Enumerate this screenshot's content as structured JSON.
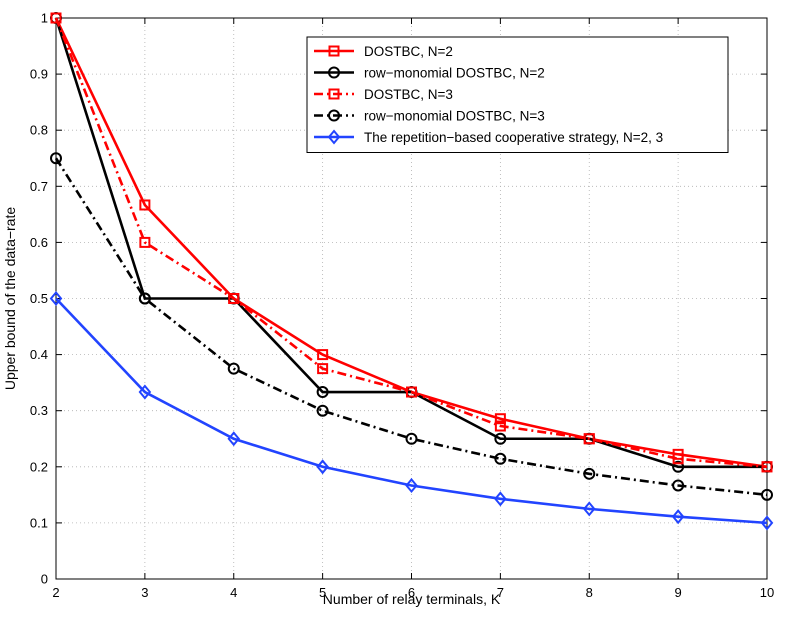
{
  "chart_data": {
    "type": "line",
    "title": "",
    "xlabel": "Number of relay terminals, K",
    "ylabel": "Upper bound of the data−rate",
    "xlim": [
      2,
      10
    ],
    "ylim": [
      0,
      1
    ],
    "xticks": [
      2,
      3,
      4,
      5,
      6,
      7,
      8,
      9,
      10
    ],
    "yticks": [
      0,
      0.1,
      0.2,
      0.3,
      0.4,
      0.5,
      0.6,
      0.7,
      0.8,
      0.9,
      1
    ],
    "ytick_labels": [
      "0",
      "0.1",
      "0.2",
      "0.3",
      "0.4",
      "0.5",
      "0.6",
      "0.7",
      "0.8",
      "0.9",
      "1"
    ],
    "grid": true,
    "legend_position": "top-right",
    "x": [
      2,
      3,
      4,
      5,
      6,
      7,
      8,
      9,
      10
    ],
    "series": [
      {
        "name": "DOSTBC, N=2",
        "color": "#ff0000",
        "line_style": "solid",
        "marker": "square",
        "values": [
          1.0,
          0.6667,
          0.5,
          0.4,
          0.3333,
          0.2857,
          0.25,
          0.2222,
          0.2
        ]
      },
      {
        "name": "row−monomial DOSTBC, N=2",
        "color": "#000000",
        "line_style": "solid",
        "marker": "circle",
        "values": [
          1.0,
          0.5,
          0.5,
          0.3333,
          0.3333,
          0.25,
          0.25,
          0.2,
          0.2
        ]
      },
      {
        "name": "DOSTBC, N=3",
        "color": "#ff0000",
        "line_style": "dashdot",
        "marker": "square",
        "values": [
          1.0,
          0.6,
          0.5,
          0.375,
          0.3333,
          0.2727,
          0.25,
          0.2143,
          0.2
        ]
      },
      {
        "name": "row−monomial DOSTBC, N=3",
        "color": "#000000",
        "line_style": "dashdot",
        "marker": "circle",
        "values": [
          0.75,
          0.5,
          0.375,
          0.3,
          0.25,
          0.2143,
          0.1875,
          0.1667,
          0.15
        ]
      },
      {
        "name": "The repetition−based cooperative strategy, N=2, 3",
        "color": "#2244ff",
        "line_style": "solid",
        "marker": "diamond",
        "values": [
          0.5,
          0.3333,
          0.25,
          0.2,
          0.1667,
          0.1429,
          0.125,
          0.1111,
          0.1
        ]
      }
    ]
  }
}
